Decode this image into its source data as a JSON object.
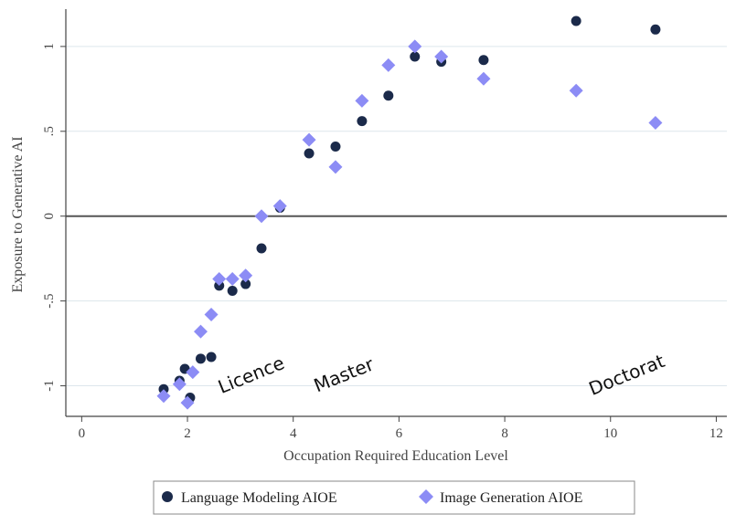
{
  "chart_data": {
    "type": "scatter",
    "title": "",
    "xlabel": "Occupation Required Education Level",
    "ylabel": "Exposure to Generative AI",
    "xlim": [
      -0.3,
      12.2
    ],
    "ylim": [
      -1.18,
      1.22
    ],
    "xticks": [
      0,
      2,
      4,
      6,
      8,
      10,
      12
    ],
    "xtick_labels": [
      "0",
      "2",
      "4",
      "6",
      "8",
      "10",
      "12"
    ],
    "yticks": [
      -1,
      -0.5,
      0,
      0.5,
      1
    ],
    "ytick_labels": [
      "-1",
      "-.5",
      "0",
      ".5",
      "1"
    ],
    "grid": "horizontal",
    "reference_line_y": 0,
    "legend_position": "bottom",
    "colors": {
      "language": "#1b2a4a",
      "image": "#8c8cf5",
      "grid": "#dde6ec",
      "axis": "#444444",
      "zero_line": "#555555"
    },
    "series": [
      {
        "name": "Language Modeling AIOE",
        "marker": "circle",
        "points": [
          [
            1.55,
            -1.02
          ],
          [
            1.85,
            -0.97
          ],
          [
            1.95,
            -0.9
          ],
          [
            2.05,
            -1.07
          ],
          [
            2.25,
            -0.84
          ],
          [
            2.45,
            -0.83
          ],
          [
            2.6,
            -0.41
          ],
          [
            2.85,
            -0.44
          ],
          [
            3.1,
            -0.4
          ],
          [
            3.4,
            -0.19
          ],
          [
            3.75,
            0.05
          ],
          [
            4.3,
            0.37
          ],
          [
            4.8,
            0.41
          ],
          [
            5.3,
            0.56
          ],
          [
            5.8,
            0.71
          ],
          [
            6.3,
            0.94
          ],
          [
            6.8,
            0.91
          ],
          [
            7.6,
            0.92
          ],
          [
            9.35,
            1.15
          ],
          [
            10.85,
            1.1
          ]
        ]
      },
      {
        "name": "Image Generation AIOE",
        "marker": "diamond",
        "points": [
          [
            1.55,
            -1.06
          ],
          [
            1.85,
            -0.99
          ],
          [
            2.0,
            -1.1
          ],
          [
            2.1,
            -0.92
          ],
          [
            2.25,
            -0.68
          ],
          [
            2.45,
            -0.58
          ],
          [
            2.6,
            -0.37
          ],
          [
            2.85,
            -0.37
          ],
          [
            3.1,
            -0.35
          ],
          [
            3.4,
            0.0
          ],
          [
            3.75,
            0.06
          ],
          [
            4.3,
            0.45
          ],
          [
            4.8,
            0.29
          ],
          [
            5.3,
            0.68
          ],
          [
            5.8,
            0.89
          ],
          [
            6.3,
            1.0
          ],
          [
            6.8,
            0.94
          ],
          [
            7.6,
            0.81
          ],
          [
            9.35,
            0.74
          ],
          [
            10.85,
            0.55
          ]
        ]
      }
    ],
    "annotations": [
      {
        "text": "Licence",
        "x": 3.25,
        "y": -0.97,
        "rotation": -22
      },
      {
        "text": "Master",
        "x": 5.0,
        "y": -0.97,
        "rotation": -22
      },
      {
        "text": "Doctorat",
        "x": 10.35,
        "y": -0.97,
        "rotation": -22
      }
    ]
  }
}
